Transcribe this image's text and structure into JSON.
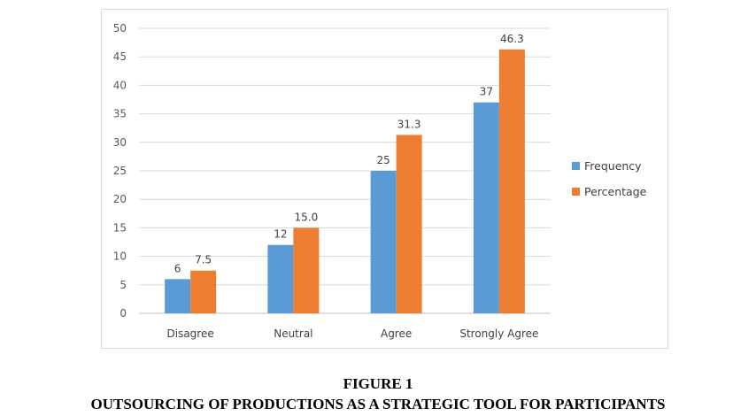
{
  "figure": {
    "label": "FIGURE 1",
    "title": "OUTSOURCING OF PRODUCTIONS AS A STRATEGIC TOOL FOR PARTICIPANTS"
  },
  "chart_data": {
    "type": "bar",
    "categories": [
      "Disagree",
      "Neutral",
      "Agree",
      "Strongly Agree"
    ],
    "series": [
      {
        "name": "Frequency",
        "values": [
          6,
          12,
          25,
          37
        ],
        "labels": [
          "6",
          "12",
          "25",
          "37"
        ],
        "color": "#5b9bd5"
      },
      {
        "name": "Percentage",
        "values": [
          7.5,
          15.0,
          31.3,
          46.3
        ],
        "labels": [
          "7.5",
          "15.0",
          "31.3",
          "46.3"
        ],
        "color": "#ed7d31"
      }
    ],
    "ylim": [
      0,
      50
    ],
    "yticks": [
      0,
      5,
      10,
      15,
      20,
      25,
      30,
      35,
      40,
      45,
      50
    ],
    "grid": true,
    "legend": "right"
  }
}
